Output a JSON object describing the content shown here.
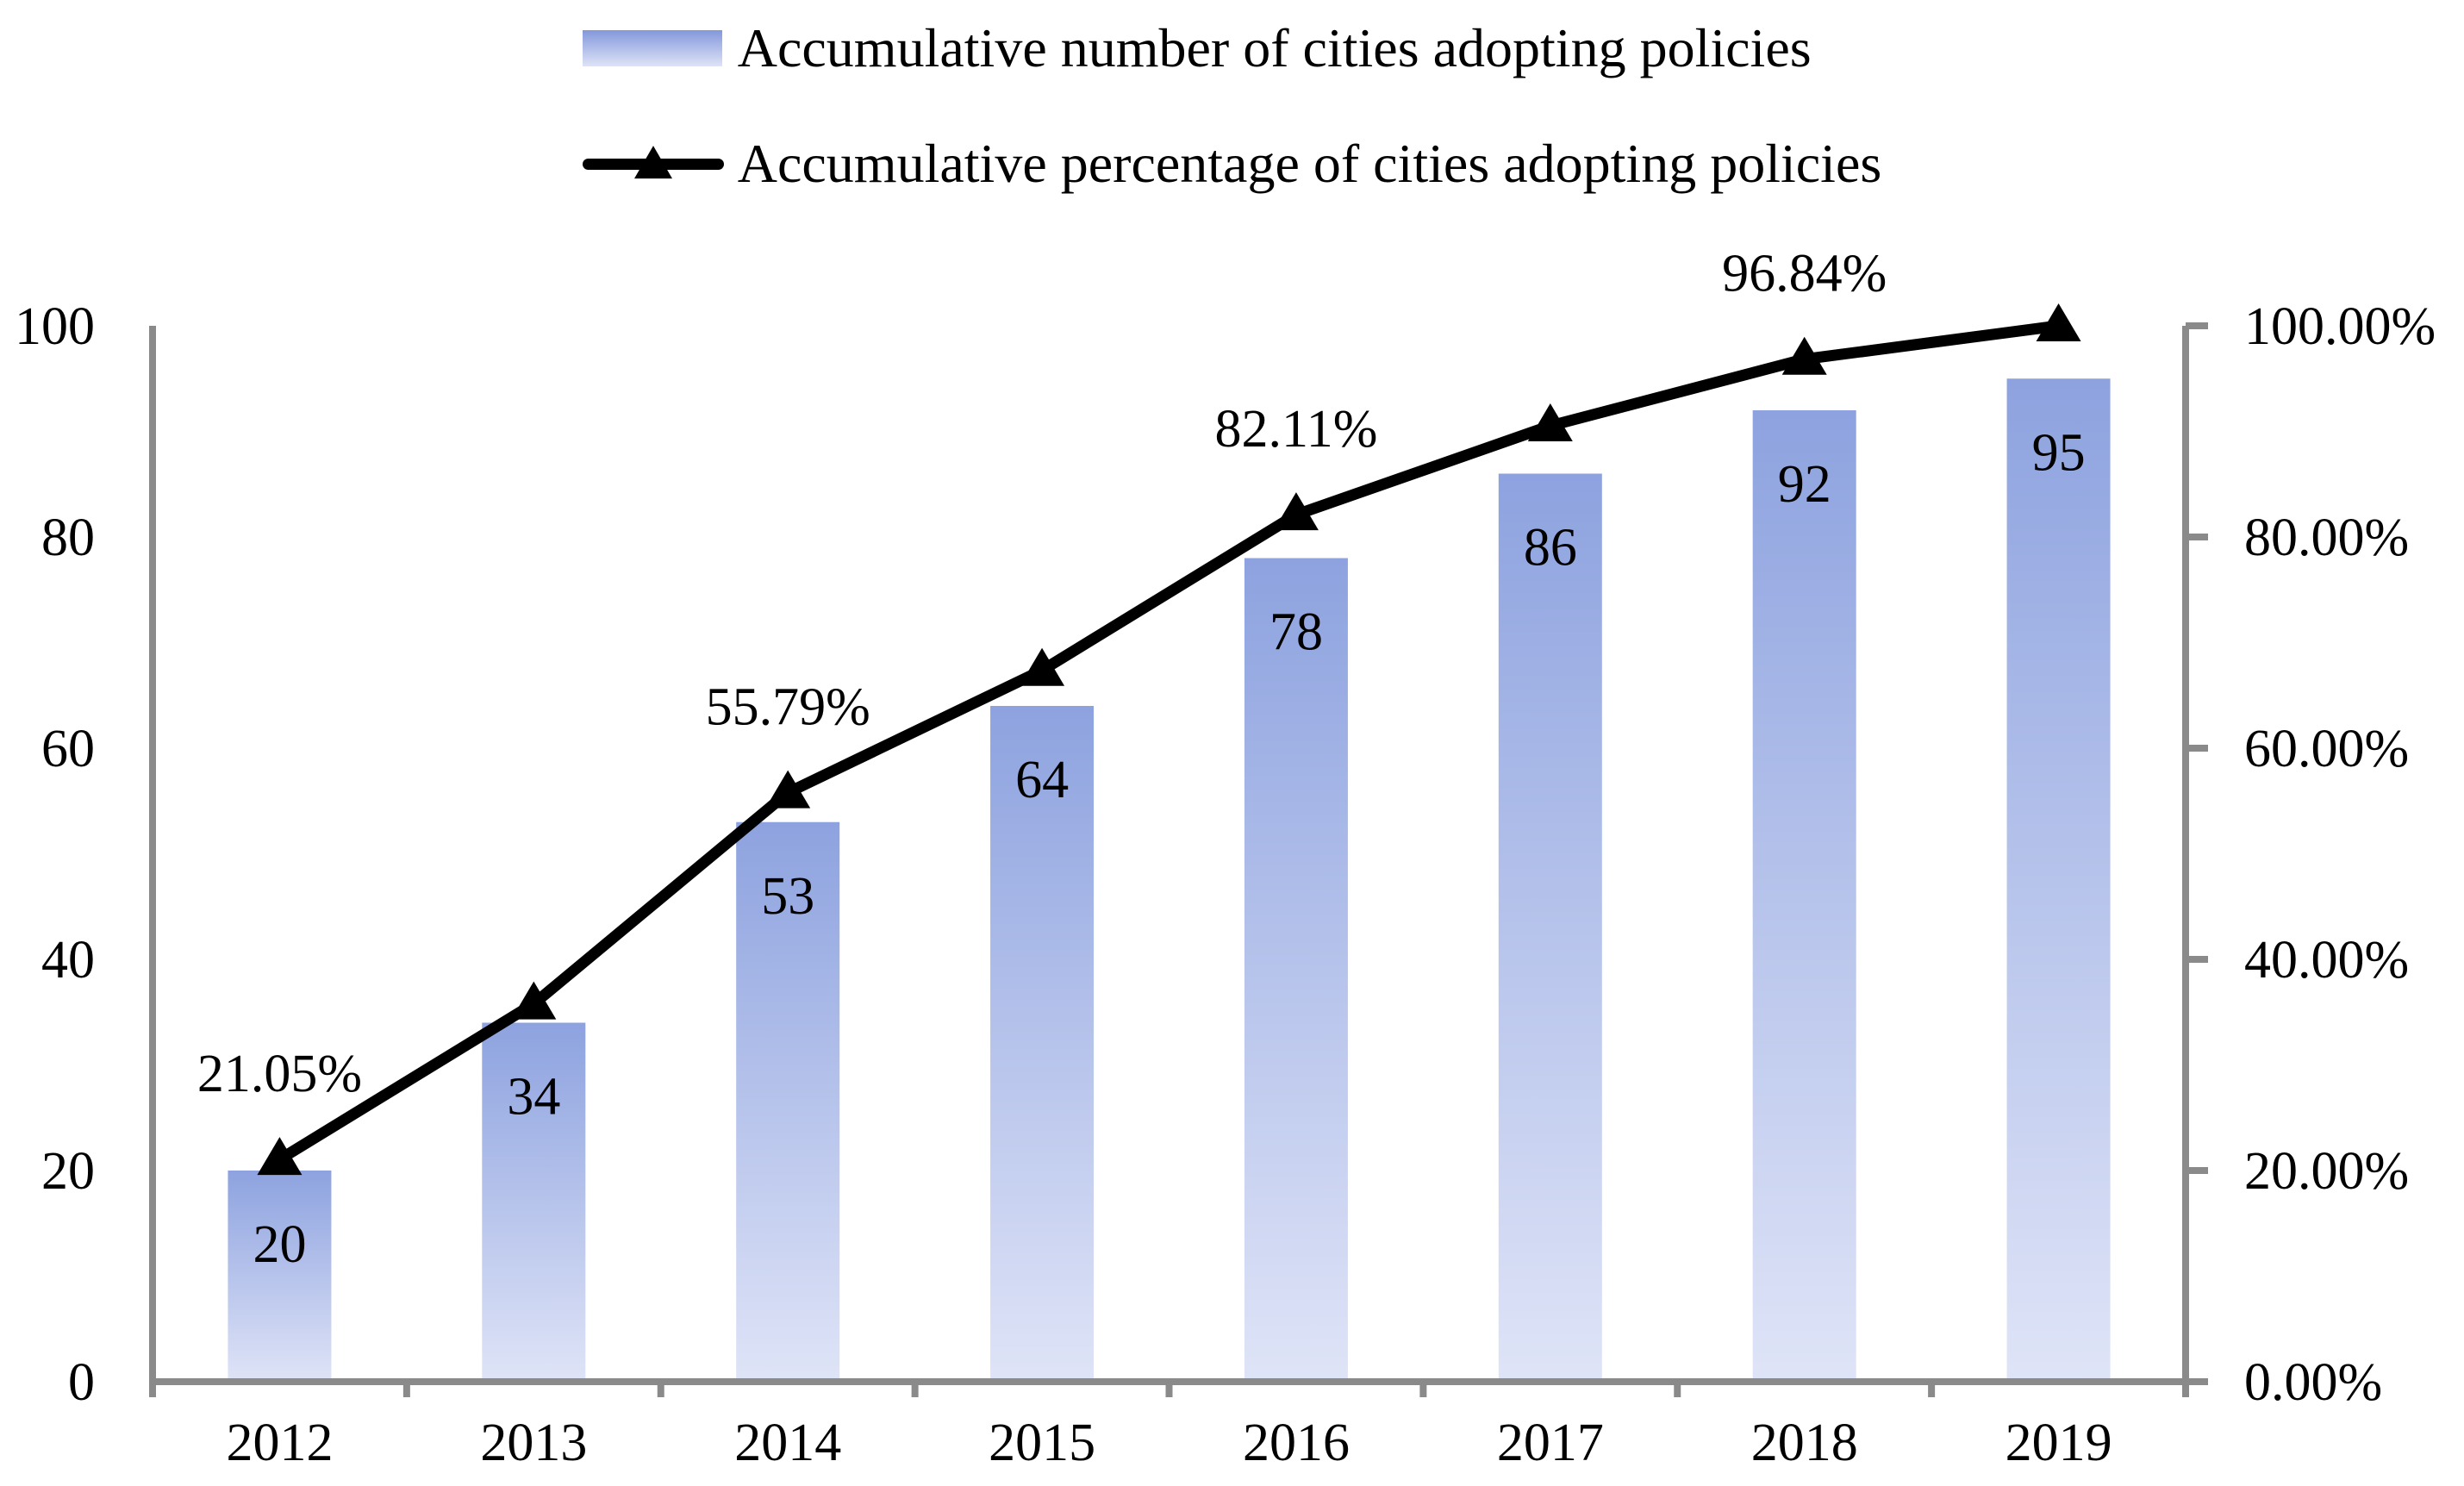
{
  "legend": {
    "bar_label": "Accumulative number of cities adopting policies",
    "line_label": "Accumulative percentage of cities adopting policies"
  },
  "chart_data": {
    "type": "combo-bar-line",
    "categories": [
      "2012",
      "2013",
      "2014",
      "2015",
      "2016",
      "2017",
      "2018",
      "2019"
    ],
    "series": [
      {
        "name": "Accumulative number of cities adopting policies",
        "type": "bar",
        "axis": "left",
        "values": [
          20,
          34,
          53,
          64,
          78,
          86,
          92,
          95
        ],
        "value_labels": [
          "20",
          "34",
          "53",
          "64",
          "78",
          "86",
          "92",
          "95"
        ]
      },
      {
        "name": "Accumulative percentage of cities adopting policies",
        "type": "line",
        "axis": "right",
        "values": [
          21.05,
          35.79,
          55.79,
          67.37,
          82.11,
          90.53,
          96.84,
          100.0
        ],
        "point_labels": [
          "21.05%",
          "",
          "55.79%",
          "",
          "82.11%",
          "",
          "96.84%",
          ""
        ]
      }
    ],
    "left_axis": {
      "min": 0,
      "max": 100,
      "tick_labels_top_to_bottom": [
        "100",
        "80",
        "60",
        "40",
        "20",
        "0"
      ]
    },
    "right_axis": {
      "min": 0,
      "max": 100,
      "tick_labels_top_to_bottom": [
        "100.00%",
        "80.00%",
        "60.00%",
        "40.00%",
        "20.00%",
        "0.00%"
      ]
    },
    "grid": false,
    "legend_position": "top",
    "colors": {
      "bar_gradient_top": "#8DA2DF",
      "bar_gradient_bottom": "#DFE4F7",
      "line": "#000000",
      "axis": "#8A8A8A",
      "text": "#000000"
    }
  }
}
